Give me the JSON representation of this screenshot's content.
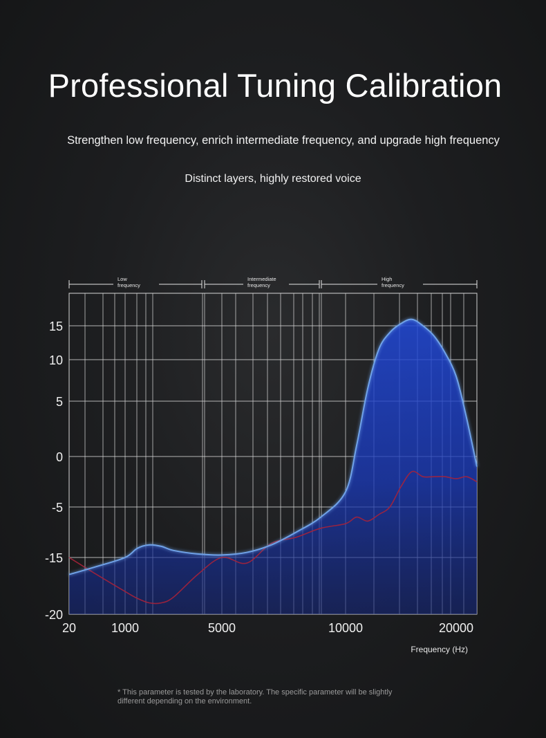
{
  "header": {
    "title": "Professional Tuning Calibration",
    "subtitle": "Strengthen low frequency, enrich intermediate frequency, and upgrade high frequency",
    "subtitle2": "Distinct layers, highly restored voice"
  },
  "footnote": {
    "line1": "* This parameter is tested by the laboratory. The specific parameter will be slightly",
    "line2": "different depending on the environment."
  },
  "chart_data": {
    "type": "area",
    "title": "",
    "xlabel": "Frequency (Hz)",
    "ylabel": "",
    "x_ticks": [
      "20",
      "1000",
      "5000",
      "10000",
      "20000"
    ],
    "y_ticks": [
      "15",
      "10",
      "5",
      "0",
      "-5",
      "-15",
      "-20"
    ],
    "bands": [
      {
        "label_line1": "Low",
        "label_line2": "frequency"
      },
      {
        "label_line1": "Intermediate",
        "label_line2": "frequency"
      },
      {
        "label_line1": "High",
        "label_line2": "frequency"
      }
    ],
    "grid": true,
    "series": [
      {
        "name": "",
        "color": "#6fa2e8",
        "fill": "#1636b0",
        "x": [
          20,
          500,
          1000,
          1500,
          2000,
          2500,
          3000,
          4000,
          5000,
          6000,
          7000,
          8000,
          9000,
          10000,
          11000,
          12000,
          13000,
          14000,
          15000,
          16000,
          17000,
          18000,
          19000,
          20000,
          21000,
          22000
        ],
        "y": [
          -16.5,
          -15.8,
          -15.0,
          -13.2,
          -12.5,
          -12.8,
          -13.6,
          -14.3,
          -14.5,
          -14.0,
          -12.5,
          -10.0,
          -7.0,
          -3.5,
          1.0,
          6.5,
          11.5,
          14.0,
          15.2,
          15.6,
          15.0,
          13.5,
          11.0,
          8.0,
          3.5,
          -1.0
        ]
      },
      {
        "name": "",
        "color": "#a7223a",
        "x": [
          20,
          500,
          1000,
          1500,
          2000,
          2500,
          3000,
          4000,
          5000,
          6000,
          7000,
          8000,
          9000,
          10000,
          11000,
          12000,
          13000,
          14000,
          15000,
          16000,
          17000,
          18000,
          19000,
          20000,
          21000,
          22000
        ],
        "y": [
          -15.0,
          -16.5,
          -18.0,
          -18.6,
          -19.0,
          -19.0,
          -18.5,
          -16.5,
          -15.0,
          -15.5,
          -12.2,
          -11.0,
          -9.2,
          -8.3,
          -7.0,
          -7.8,
          -6.5,
          -5.0,
          -3.0,
          -1.5,
          -2.0,
          -2.0,
          -2.0,
          -2.2,
          -2.0,
          -2.5
        ]
      }
    ]
  }
}
